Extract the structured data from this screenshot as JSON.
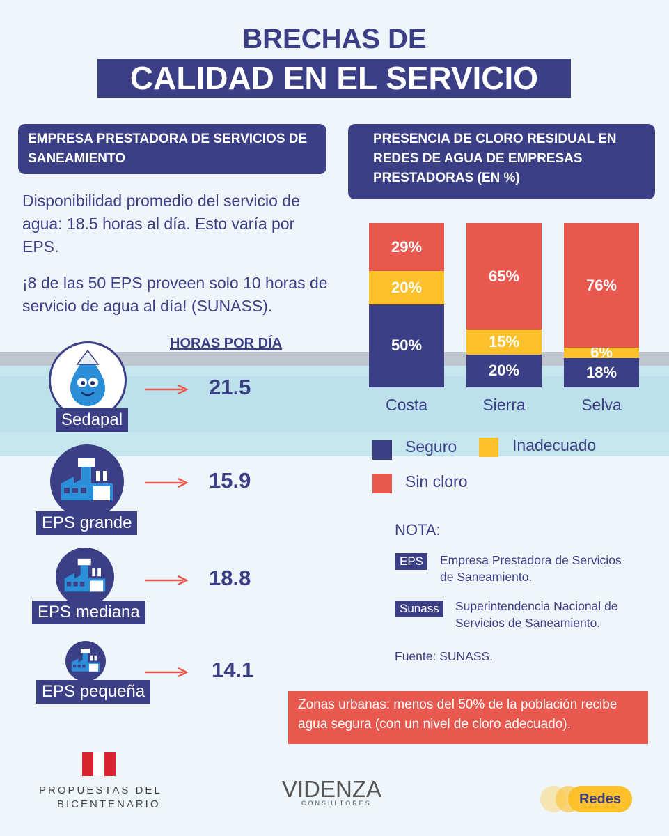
{
  "title": {
    "line1": "BRECHAS DE",
    "line2": "CALIDAD EN EL SERVICIO"
  },
  "left": {
    "box_title": "EMPRESA PRESTADORA DE SERVICIOS DE SANEAMIENTO",
    "para1": "Disponibilidad promedio del servicio de agua: 18.5 horas al día. Esto varía por EPS.",
    "para2": "¡8 de las 50 EPS proveen solo 10 horas de servicio de agua al día! (SUNASS).",
    "hours_header": "HORAS POR DÍA",
    "rows": [
      {
        "label": "Sedapal",
        "hours": "21.5",
        "icon": "water-drop-mascot-icon"
      },
      {
        "label": "EPS grande",
        "hours": "15.9",
        "icon": "factory-icon"
      },
      {
        "label": "EPS mediana",
        "hours": "18.8",
        "icon": "factory-icon"
      },
      {
        "label": "EPS pequeña",
        "hours": "14.1",
        "icon": "factory-icon"
      }
    ]
  },
  "chart_data": {
    "type": "bar",
    "stacked": true,
    "title": "PRESENCIA DE CLORO RESIDUAL EN REDES DE AGUA DE EMPRESAS PRESTADORAS (EN %)",
    "categories": [
      "Costa",
      "Sierra",
      "Selva"
    ],
    "series": [
      {
        "name": "Seguro",
        "color": "#3b3f86",
        "values": [
          50,
          20,
          18
        ],
        "labels": [
          "50%",
          "20%",
          "18%"
        ]
      },
      {
        "name": "Inadecuado",
        "color": "#fcc02a",
        "values": [
          20,
          15,
          6
        ],
        "labels": [
          "20%",
          "15%",
          "6%"
        ]
      },
      {
        "name": "Sin cloro",
        "color": "#e9584f",
        "values": [
          29,
          65,
          76
        ],
        "labels": [
          "29%",
          "65%",
          "76%"
        ]
      }
    ],
    "ylim": [
      0,
      100
    ],
    "grid": false,
    "legend": "bottom"
  },
  "note": {
    "heading": "NOTA:",
    "items": [
      {
        "tag": "EPS",
        "text1": "Empresa Prestadora de Servicios",
        "text2": "de Saneamiento."
      },
      {
        "tag": "Sunass",
        "text1": "Superintendencia Nacional de",
        "text2": "Servicios de Saneamiento."
      }
    ],
    "source": "Fuente: SUNASS."
  },
  "callout": "Zonas urbanas: menos del 50% de la población recibe agua segura (con un nivel de cloro adecuado).",
  "footer": {
    "propuestas_line1": "PROPUESTAS DEL",
    "propuestas_line2": "BICENTENARIO",
    "videnza": "VIDENZA",
    "videnza_sub": "CONSULTORES",
    "redes": "Redes"
  },
  "colors": {
    "navy": "#3b3f86",
    "yellow": "#fcc02a",
    "red": "#e9584f",
    "background": "#eef5fb"
  }
}
